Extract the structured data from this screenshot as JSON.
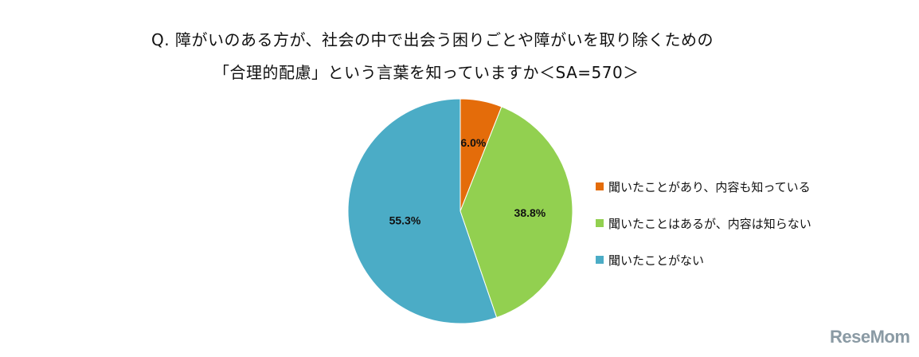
{
  "chart_data": {
    "type": "pie",
    "title_line1": "Q. 障がいのある方が、社会の中で出会う困りごとや障がいを取り除くための",
    "title_line2": "「合理的配慮」という言葉を知っていますか＜SA=570＞",
    "slices": [
      {
        "label": "聞いたことがあり、内容も知っている",
        "value": 6.0,
        "display": "6.0%",
        "color": "#e46c0a"
      },
      {
        "label": "聞いたことはあるが、内容は知らない",
        "value": 38.8,
        "display": "38.8%",
        "color": "#92d050"
      },
      {
        "label": "聞いたことがない",
        "value": 55.3,
        "display": "55.3%",
        "color": "#4bacc6"
      }
    ],
    "start_angle": "top (12 o'clock)",
    "direction": "clockwise",
    "legend_placement": "right"
  },
  "watermark": "ReseMom"
}
